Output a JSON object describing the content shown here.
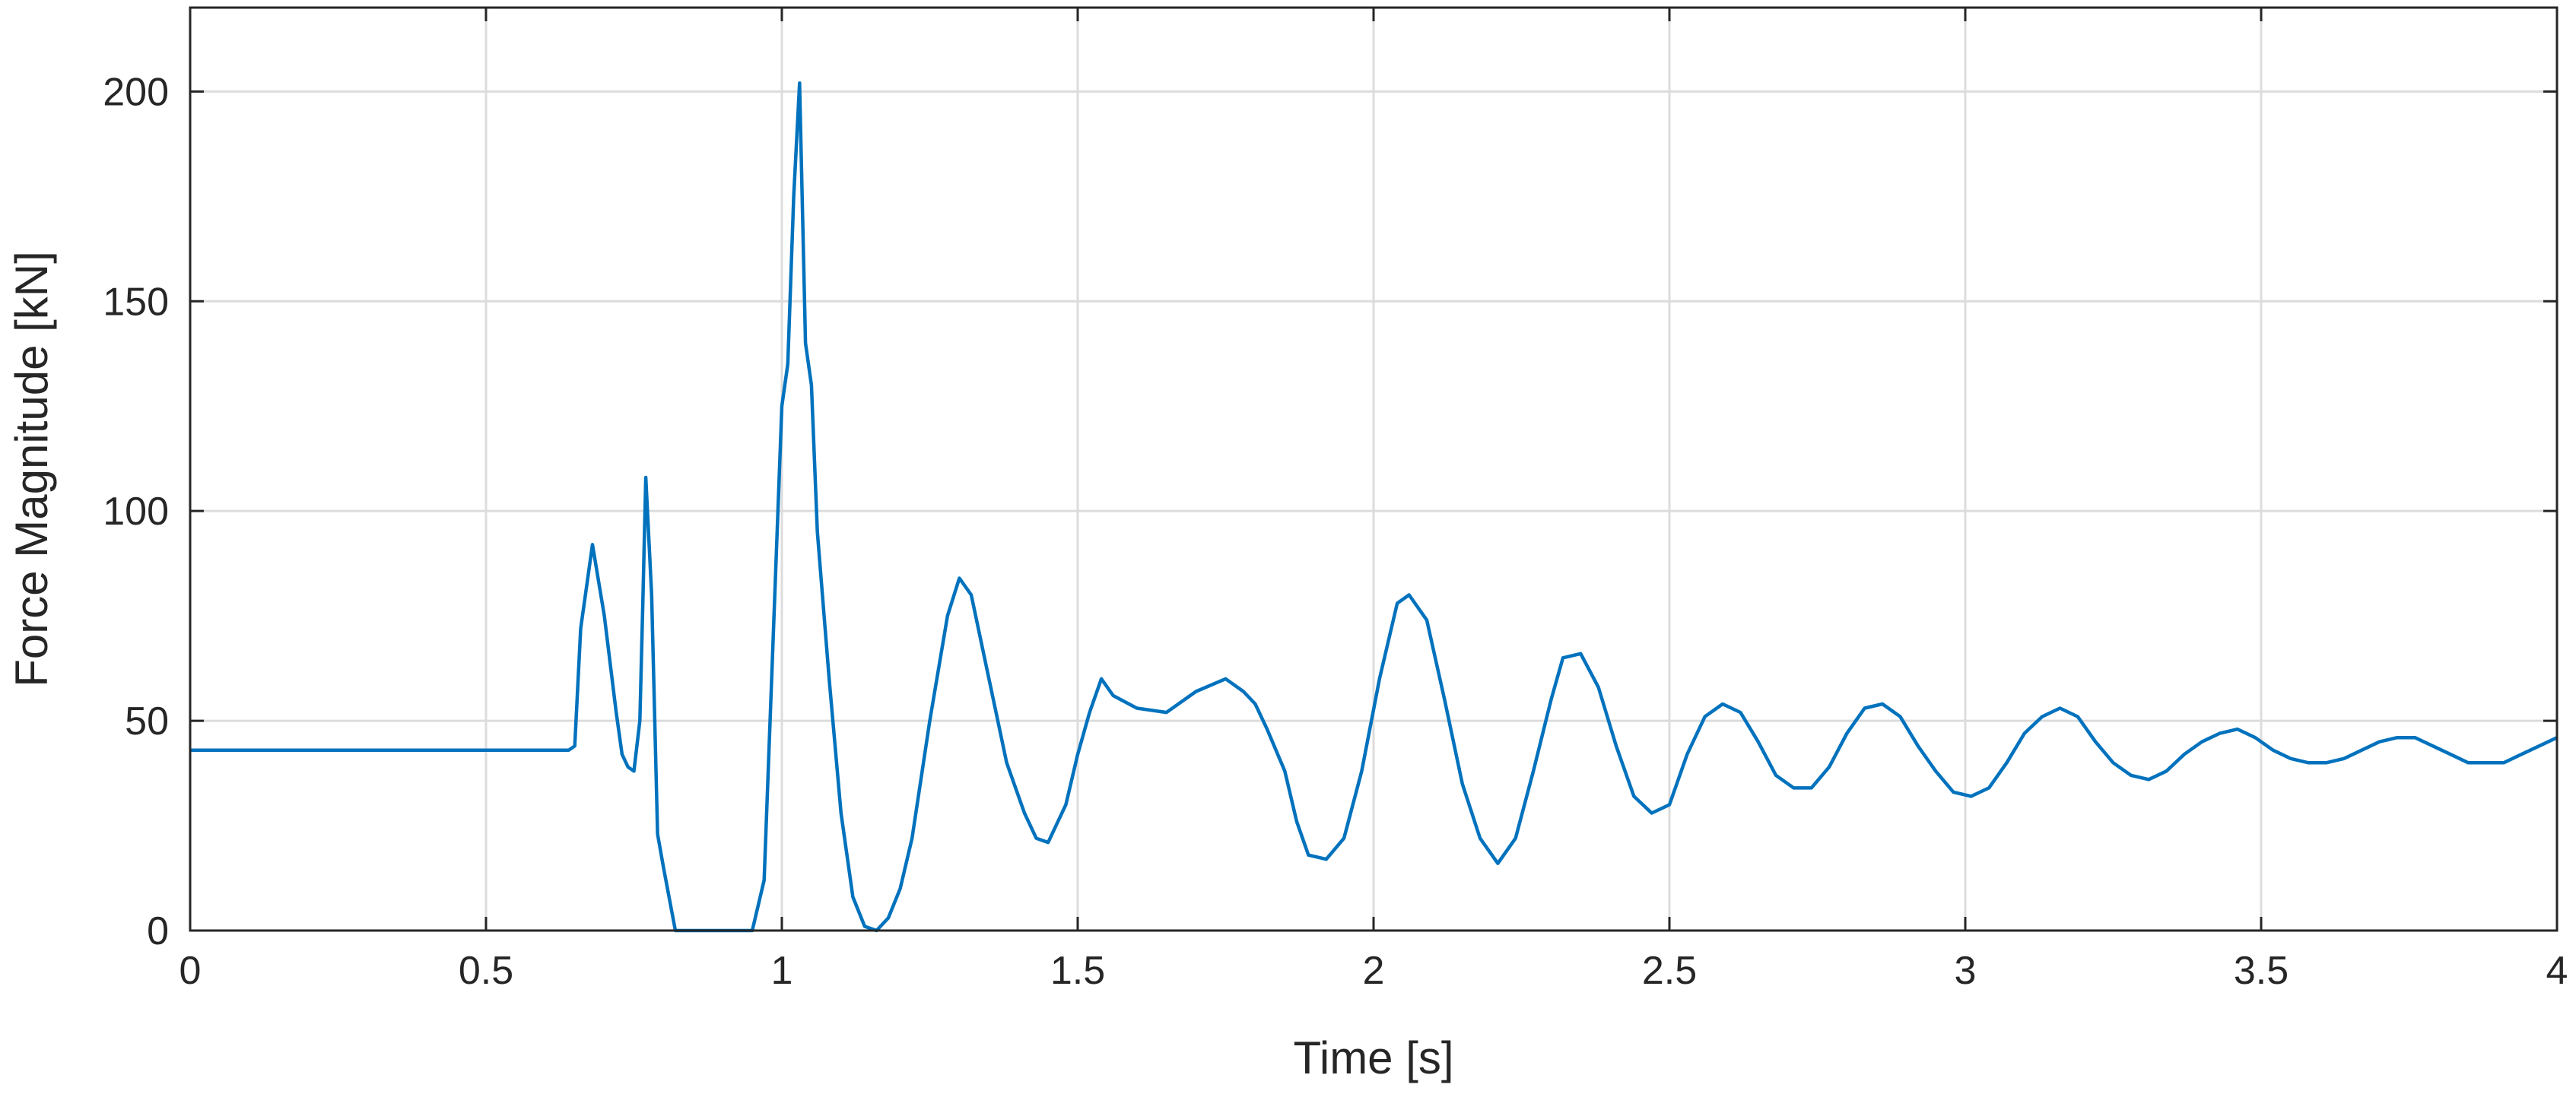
{
  "chart_data": {
    "type": "line",
    "title": "",
    "xlabel": "Time [s]",
    "ylabel": "Force Magnitude [kN]",
    "xlim": [
      0,
      4
    ],
    "ylim": [
      0,
      220
    ],
    "x_ticks": [
      0,
      0.5,
      1,
      1.5,
      2,
      2.5,
      3,
      3.5,
      4
    ],
    "x_tick_labels": [
      "0",
      "0.5",
      "1",
      "1.5",
      "2",
      "2.5",
      "3",
      "3.5",
      "4"
    ],
    "y_ticks": [
      0,
      50,
      100,
      150,
      200
    ],
    "y_tick_labels": [
      "0",
      "50",
      "100",
      "150",
      "200"
    ],
    "grid": true,
    "legend": "none",
    "series": [
      {
        "color": "#0072BD",
        "x": [
          0,
          0.1,
          0.2,
          0.3,
          0.4,
          0.5,
          0.6,
          0.64,
          0.65,
          0.66,
          0.68,
          0.7,
          0.72,
          0.73,
          0.74,
          0.75,
          0.76,
          0.765,
          0.77,
          0.78,
          0.79,
          0.8,
          0.82,
          0.9,
          0.95,
          0.97,
          1.0,
          1.01,
          1.02,
          1.03,
          1.04,
          1.05,
          1.06,
          1.08,
          1.1,
          1.12,
          1.14,
          1.16,
          1.18,
          1.2,
          1.22,
          1.25,
          1.28,
          1.3,
          1.32,
          1.35,
          1.38,
          1.41,
          1.43,
          1.45,
          1.48,
          1.5,
          1.52,
          1.54,
          1.56,
          1.6,
          1.65,
          1.7,
          1.75,
          1.78,
          1.8,
          1.82,
          1.85,
          1.87,
          1.89,
          1.92,
          1.95,
          1.98,
          2.01,
          2.04,
          2.06,
          2.09,
          2.12,
          2.15,
          2.18,
          2.21,
          2.24,
          2.27,
          2.3,
          2.32,
          2.35,
          2.38,
          2.41,
          2.44,
          2.47,
          2.5,
          2.53,
          2.56,
          2.59,
          2.62,
          2.65,
          2.68,
          2.71,
          2.74,
          2.77,
          2.8,
          2.83,
          2.86,
          2.89,
          2.92,
          2.95,
          2.98,
          3.01,
          3.04,
          3.07,
          3.1,
          3.13,
          3.16,
          3.19,
          3.22,
          3.25,
          3.28,
          3.31,
          3.34,
          3.37,
          3.4,
          3.43,
          3.46,
          3.49,
          3.52,
          3.55,
          3.58,
          3.61,
          3.64,
          3.67,
          3.7,
          3.73,
          3.76,
          3.79,
          3.82,
          3.85,
          3.88,
          3.91,
          3.94,
          3.97,
          4.0
        ],
        "y": [
          43,
          43,
          43,
          43,
          43,
          43,
          43,
          43,
          44,
          72,
          92,
          75,
          52,
          42,
          39,
          38,
          50,
          78,
          108,
          80,
          23,
          15,
          0,
          0,
          0,
          12,
          125,
          135,
          175,
          202,
          140,
          130,
          95,
          60,
          28,
          8,
          1,
          0,
          3,
          10,
          22,
          50,
          75,
          84,
          80,
          60,
          40,
          28,
          22,
          21,
          30,
          42,
          52,
          60,
          56,
          53,
          52,
          57,
          60,
          57,
          54,
          48,
          38,
          26,
          18,
          17,
          22,
          38,
          60,
          78,
          80,
          74,
          55,
          35,
          22,
          16,
          22,
          38,
          55,
          65,
          66,
          58,
          44,
          32,
          28,
          30,
          42,
          51,
          54,
          52,
          45,
          37,
          34,
          34,
          39,
          47,
          53,
          54,
          51,
          44,
          38,
          33,
          32,
          34,
          40,
          47,
          51,
          53,
          51,
          45,
          40,
          37,
          36,
          38,
          42,
          45,
          47,
          48,
          46,
          43,
          41,
          40,
          40,
          41,
          43,
          45,
          46,
          46,
          44,
          42,
          40,
          40,
          40,
          42,
          44,
          46
        ]
      }
    ]
  }
}
